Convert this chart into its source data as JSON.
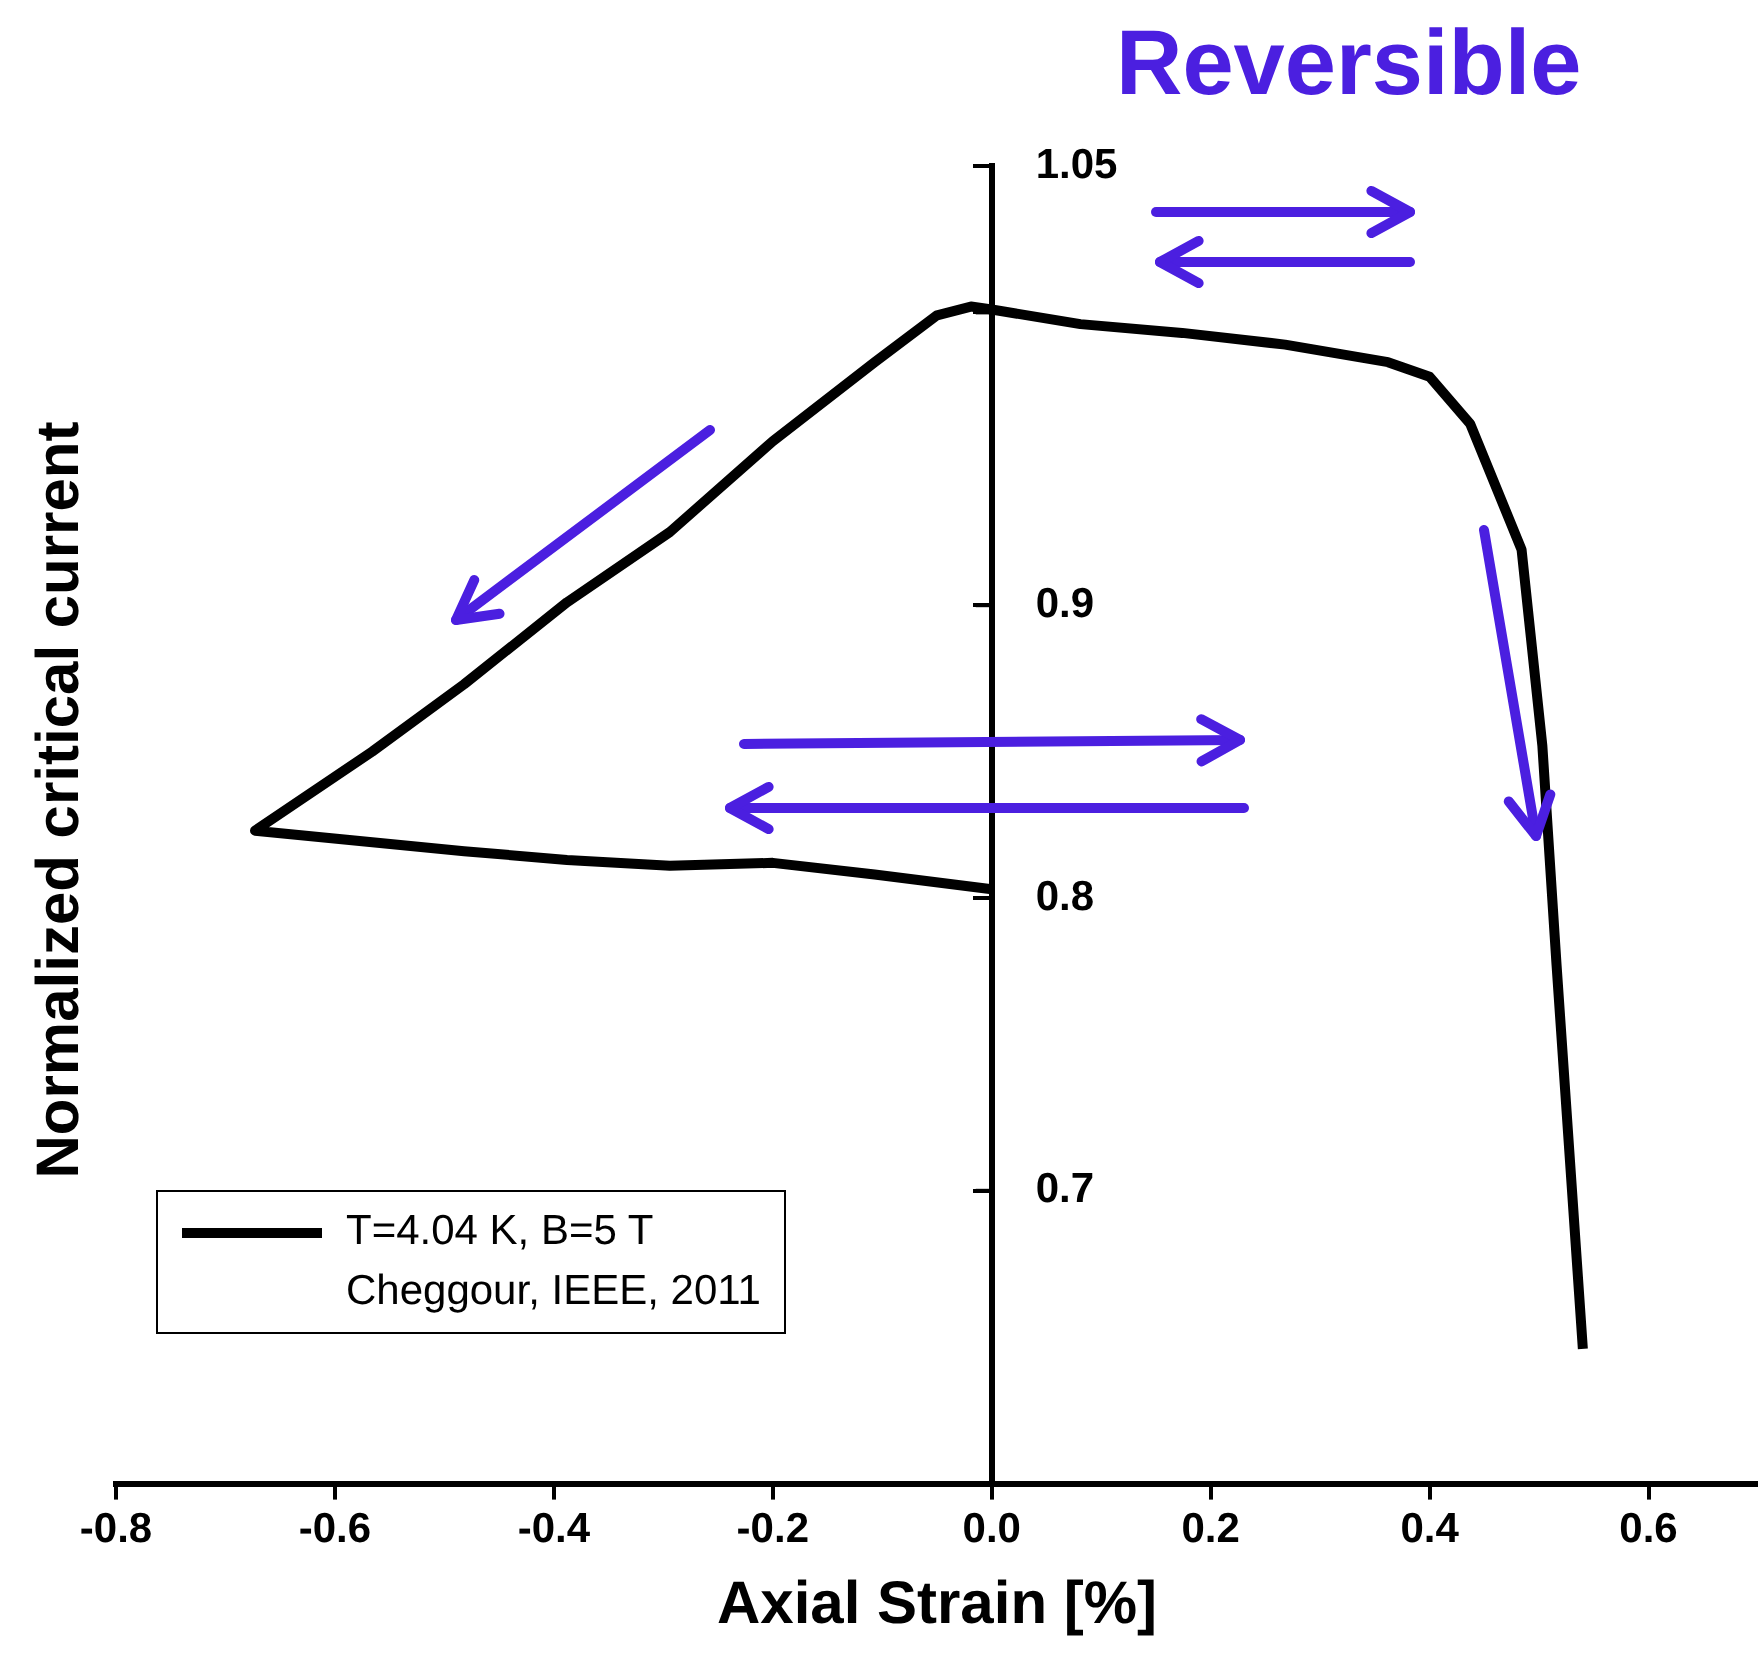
{
  "chart_data": {
    "type": "line",
    "xlabel": "Axial Strain [%]",
    "ylabel": "Normalized critical current",
    "annotations": [
      "Reversible",
      "Cheggour, IEEE, 2011"
    ],
    "xlim": [
      -0.8,
      0.7
    ],
    "xticks": [
      -0.8,
      -0.6,
      -0.4,
      -0.2,
      {
        "value": 0,
        "label": "0.0"
      },
      0.2,
      0.4,
      0.6
    ],
    "ylim": [
      0.6,
      1.05
    ],
    "yticks": [
      0.7,
      0.8,
      0.9,
      {
        "value": 1.0,
        "label": null
      },
      1.05
    ],
    "legend": "bottom left",
    "grid": false,
    "marker": "none",
    "line_style": "solid",
    "series": [
      {
        "name": "T=4.04 K, B=5 T",
        "color": "#000000",
        "x": [
          0.0,
          -0.107,
          -0.2,
          -0.294,
          -0.388,
          -0.482,
          -0.673,
          -0.566,
          -0.482,
          -0.388,
          -0.294,
          -0.2,
          -0.107,
          -0.05,
          -0.019,
          0.0,
          0.081,
          0.174,
          0.268,
          0.362,
          0.4,
          0.437,
          0.484,
          0.503,
          0.516,
          0.54
        ],
        "values": [
          0.803,
          0.808,
          0.812,
          0.811,
          0.813,
          0.816,
          0.823,
          0.85,
          0.873,
          0.901,
          0.925,
          0.956,
          0.983,
          0.999,
          1.002,
          1.001,
          0.996,
          0.993,
          0.989,
          0.983,
          0.978,
          0.962,
          0.919,
          0.852,
          0.777,
          0.646
        ]
      }
    ]
  }
}
